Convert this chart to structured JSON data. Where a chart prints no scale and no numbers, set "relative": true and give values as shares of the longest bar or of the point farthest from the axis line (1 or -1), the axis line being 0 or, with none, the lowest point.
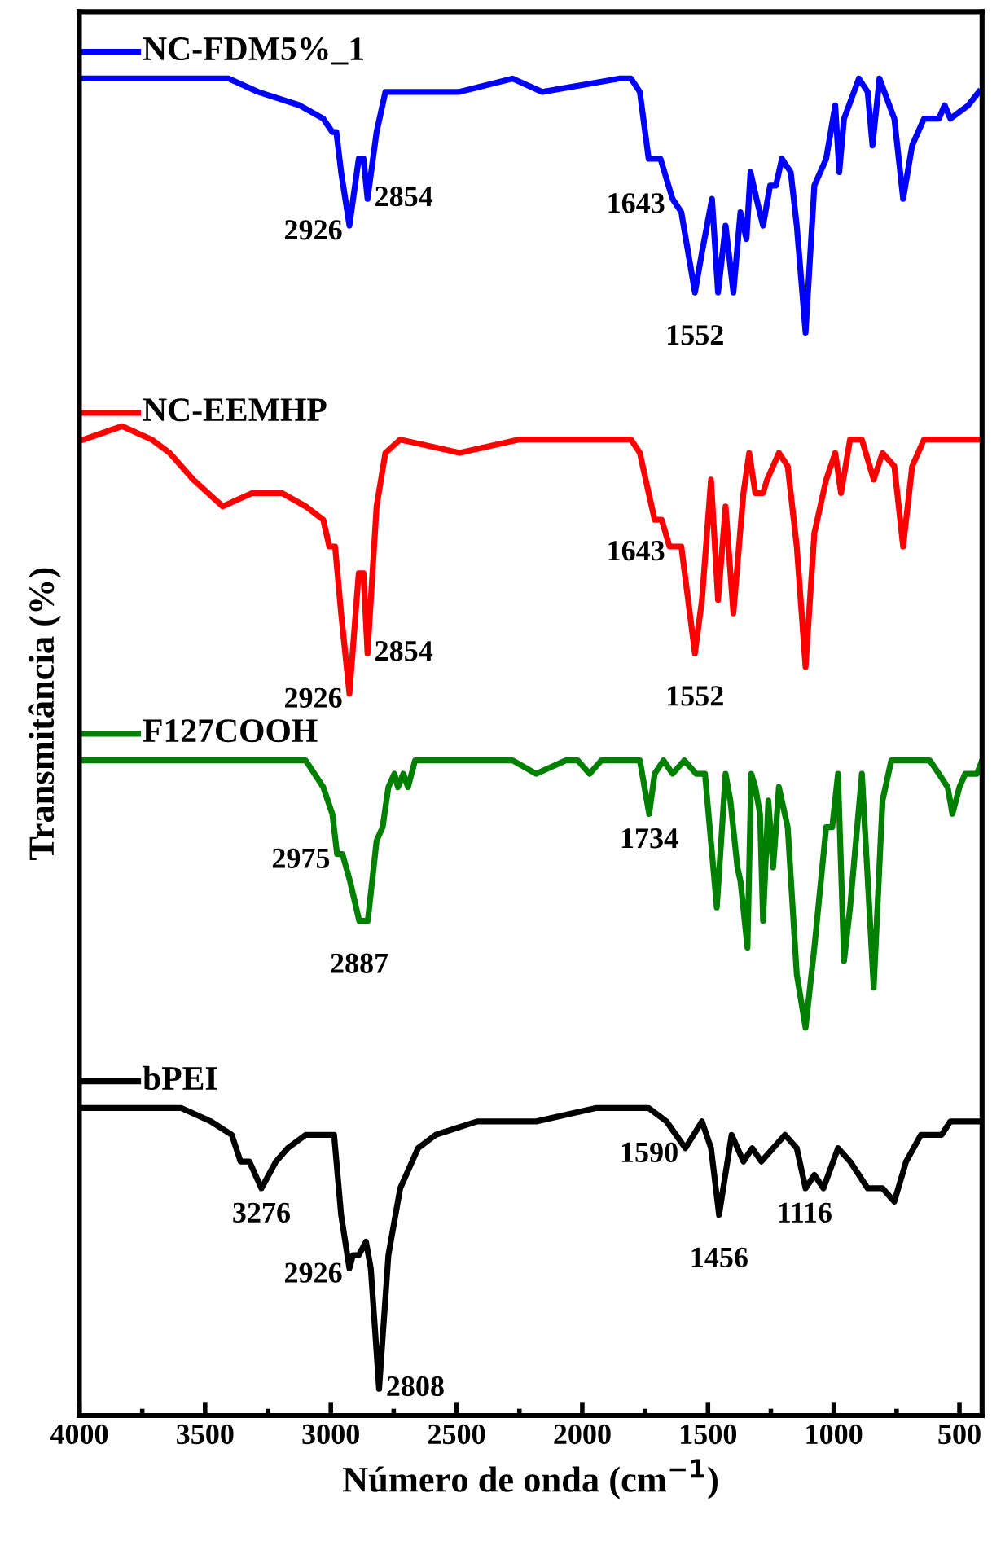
{
  "chart_data": {
    "type": "line",
    "relative": true,
    "xlabel": "Número de onda (cm$^{−1}$)",
    "ylabel": "Transmitância (%)",
    "xlim": [
      4000,
      410
    ],
    "xticks": [
      4000,
      {
        "value": 3750,
        "label": null
      },
      3500,
      {
        "value": 3250,
        "label": null
      },
      3000,
      {
        "value": 2750,
        "label": null
      },
      2500,
      {
        "value": 2250,
        "label": null
      },
      2000,
      {
        "value": 1750,
        "label": null
      },
      1500,
      {
        "value": 1250,
        "label": null
      },
      1000,
      {
        "value": 750,
        "label": null
      },
      500
    ],
    "tick_labels": "x",
    "grid": false,
    "series": [
      {
        "name": "NC-FDM5%_1",
        "color": "#0000ff",
        "x": [
          3983,
          3830,
          3594,
          3406,
          3289,
          3124,
          3030,
          2994,
          2978,
          2959,
          2926,
          2889,
          2870,
          2854,
          2818,
          2783,
          2724,
          2488,
          2277,
          2159,
          1853,
          1806,
          1771,
          1736,
          1689,
          1641,
          1606,
          1552,
          1524,
          1484,
          1460,
          1430,
          1399,
          1371,
          1347,
          1331,
          1307,
          1281,
          1253,
          1230,
          1206,
          1171,
          1147,
          1112,
          1077,
          1030,
          994,
          978,
          959,
          900,
          865,
          846,
          818,
          759,
          724,
          688,
          641,
          582,
          559,
          536,
          465,
          423
        ],
        "values": [
          1.0,
          1.0,
          1.0,
          1.0,
          0.99,
          0.98,
          0.97,
          0.96,
          0.96,
          0.93,
          0.89,
          0.94,
          0.94,
          0.91,
          0.96,
          0.99,
          0.99,
          0.99,
          1.0,
          0.99,
          1.0,
          1.0,
          0.99,
          0.94,
          0.94,
          0.91,
          0.9,
          0.84,
          0.87,
          0.91,
          0.84,
          0.89,
          0.84,
          0.9,
          0.88,
          0.93,
          0.91,
          0.89,
          0.92,
          0.92,
          0.94,
          0.93,
          0.89,
          0.81,
          0.92,
          0.94,
          0.98,
          0.93,
          0.97,
          1.0,
          0.99,
          0.95,
          1.0,
          0.97,
          0.91,
          0.95,
          0.97,
          0.97,
          0.98,
          0.97,
          0.98,
          0.99
        ]
      },
      {
        "name": "NC-EEMHP",
        "color": "#ff0000",
        "x": [
          3983,
          3830,
          3712,
          3641,
          3547,
          3430,
          3312,
          3194,
          3100,
          3030,
          3006,
          2983,
          2959,
          2926,
          2889,
          2870,
          2854,
          2818,
          2783,
          2724,
          2488,
          2253,
          2159,
          1806,
          1771,
          1736,
          1712,
          1684,
          1653,
          1606,
          1552,
          1524,
          1488,
          1460,
          1430,
          1399,
          1359,
          1336,
          1312,
          1281,
          1265,
          1218,
          1183,
          1147,
          1112,
          1077,
          1030,
          994,
          971,
          935,
          888,
          841,
          806,
          759,
          724,
          688,
          641,
          594,
          536,
          465,
          418
        ],
        "values": [
          0.73,
          0.74,
          0.73,
          0.72,
          0.7,
          0.68,
          0.69,
          0.69,
          0.68,
          0.67,
          0.65,
          0.65,
          0.6,
          0.54,
          0.63,
          0.63,
          0.57,
          0.68,
          0.72,
          0.73,
          0.72,
          0.73,
          0.73,
          0.73,
          0.72,
          0.69,
          0.67,
          0.67,
          0.65,
          0.65,
          0.57,
          0.61,
          0.7,
          0.61,
          0.68,
          0.6,
          0.69,
          0.72,
          0.69,
          0.69,
          0.7,
          0.72,
          0.71,
          0.65,
          0.56,
          0.66,
          0.7,
          0.72,
          0.69,
          0.73,
          0.73,
          0.7,
          0.72,
          0.71,
          0.65,
          0.71,
          0.73,
          0.73,
          0.73,
          0.73,
          0.73
        ]
      },
      {
        "name": "F127COOH",
        "color": "#008000",
        "x": [
          3983,
          3830,
          3594,
          3359,
          3100,
          3030,
          2994,
          2975,
          2954,
          2924,
          2887,
          2853,
          2818,
          2794,
          2771,
          2747,
          2733,
          2712,
          2693,
          2665,
          2559,
          2418,
          2277,
          2183,
          2065,
          2018,
          1971,
          1924,
          1806,
          1771,
          1734,
          1712,
          1677,
          1641,
          1594,
          1547,
          1512,
          1465,
          1430,
          1411,
          1383,
          1371,
          1343,
          1328,
          1312,
          1293,
          1281,
          1260,
          1241,
          1218,
          1183,
          1147,
          1112,
          1077,
          1030,
          1006,
          983,
          959,
          935,
          888,
          841,
          806,
          771,
          700,
          618,
          582,
          547,
          528,
          500,
          477,
          430,
          410
        ],
        "values": [
          0.49,
          0.49,
          0.49,
          0.49,
          0.49,
          0.47,
          0.45,
          0.42,
          0.42,
          0.4,
          0.37,
          0.37,
          0.43,
          0.44,
          0.47,
          0.48,
          0.47,
          0.48,
          0.47,
          0.49,
          0.49,
          0.49,
          0.49,
          0.48,
          0.49,
          0.49,
          0.48,
          0.49,
          0.49,
          0.49,
          0.45,
          0.48,
          0.49,
          0.48,
          0.49,
          0.48,
          0.48,
          0.38,
          0.48,
          0.46,
          0.41,
          0.4,
          0.35,
          0.48,
          0.47,
          0.45,
          0.37,
          0.46,
          0.41,
          0.47,
          0.44,
          0.33,
          0.29,
          0.35,
          0.44,
          0.44,
          0.48,
          0.34,
          0.38,
          0.48,
          0.32,
          0.46,
          0.49,
          0.49,
          0.49,
          0.48,
          0.47,
          0.45,
          0.47,
          0.48,
          0.48,
          0.49
        ]
      },
      {
        "name": "bPEI",
        "color": "#000000",
        "x": [
          3983,
          3783,
          3594,
          3477,
          3394,
          3359,
          3324,
          3276,
          3218,
          3171,
          3100,
          3030,
          2987,
          2959,
          2926,
          2912,
          2889,
          2860,
          2841,
          2808,
          2771,
          2724,
          2653,
          2583,
          2418,
          2183,
          1947,
          1736,
          1665,
          1590,
          1524,
          1488,
          1456,
          1406,
          1359,
          1324,
          1288,
          1194,
          1147,
          1112,
          1077,
          1041,
          983,
          935,
          865,
          806,
          759,
          712,
          653,
          606,
          571,
          536,
          418
        ],
        "values": [
          0.23,
          0.23,
          0.23,
          0.22,
          0.21,
          0.19,
          0.19,
          0.17,
          0.19,
          0.2,
          0.21,
          0.21,
          0.21,
          0.15,
          0.11,
          0.12,
          0.12,
          0.13,
          0.11,
          0.02,
          0.12,
          0.17,
          0.2,
          0.21,
          0.22,
          0.22,
          0.23,
          0.23,
          0.22,
          0.2,
          0.22,
          0.2,
          0.15,
          0.21,
          0.19,
          0.2,
          0.19,
          0.21,
          0.2,
          0.17,
          0.18,
          0.17,
          0.2,
          0.19,
          0.17,
          0.17,
          0.16,
          0.19,
          0.21,
          0.21,
          0.21,
          0.22,
          0.22
        ]
      }
    ],
    "annotations": [
      {
        "text": "2926",
        "x": 2926,
        "y": 0.89
      },
      {
        "text": "2854",
        "x": 2854,
        "y": 0.91
      },
      {
        "text": "1643",
        "x": 1643,
        "y": 0.91
      },
      {
        "text": "1552",
        "x": 1552,
        "y": 0.84
      },
      {
        "text": "2926",
        "x": 2926,
        "y": 0.54
      },
      {
        "text": "2854",
        "x": 2854,
        "y": 0.57
      },
      {
        "text": "1643",
        "x": 1643,
        "y": 0.65
      },
      {
        "text": "1552",
        "x": 1552,
        "y": 0.57
      },
      {
        "text": "2975",
        "x": 2975,
        "y": 0.42
      },
      {
        "text": "2887",
        "x": 2887,
        "y": 0.37
      },
      {
        "text": "1734",
        "x": 1734,
        "y": 0.45
      },
      {
        "text": "3276",
        "x": 3276,
        "y": 0.17
      },
      {
        "text": "2926",
        "x": 2926,
        "y": 0.11
      },
      {
        "text": "2808",
        "x": 2808,
        "y": 0.02
      },
      {
        "text": "1590",
        "x": 1590,
        "y": 0.2
      },
      {
        "text": "1456",
        "x": 1456,
        "y": 0.15
      },
      {
        "text": "1116",
        "x": 1116,
        "y": 0.17
      }
    ],
    "legend": "left"
  }
}
